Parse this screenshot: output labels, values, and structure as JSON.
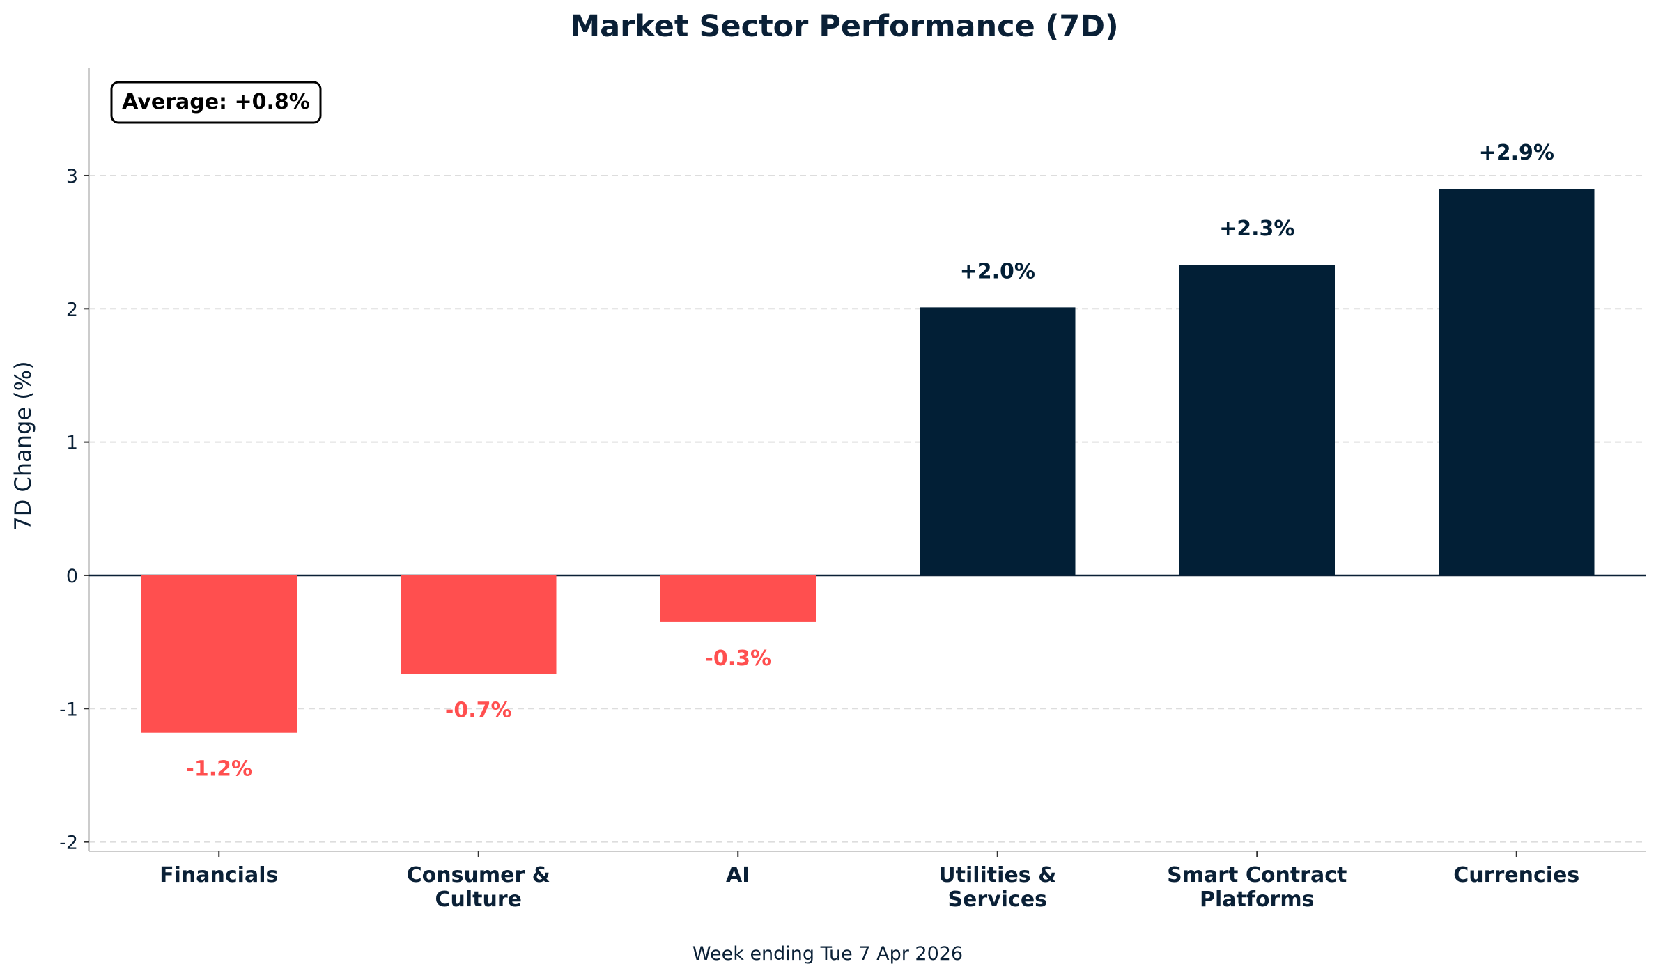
{
  "chart_data": {
    "type": "bar",
    "title": "Market Sector Performance (7D)",
    "ylabel": "7D Change (%)",
    "xlabel": "",
    "footer": "Week ending Tue 7 Apr 2026",
    "annotation": "Average: +0.8%",
    "categories": [
      [
        "Financials"
      ],
      [
        "Consumer &",
        "Culture"
      ],
      [
        "AI"
      ],
      [
        "Utilities &",
        "Services"
      ],
      [
        "Smart Contract",
        "Platforms"
      ],
      [
        "Currencies"
      ]
    ],
    "values": [
      -1.18,
      -0.74,
      -0.35,
      2.01,
      2.33,
      2.9
    ],
    "labels": [
      "-1.2%",
      "-0.7%",
      "-0.3%",
      "+2.0%",
      "+2.3%",
      "+2.9%"
    ],
    "ylim": [
      -2.07,
      3.81
    ],
    "yticks": [
      -2,
      -1,
      0,
      1,
      2,
      3
    ],
    "grid": true,
    "colors": {
      "positive": "#021f36",
      "negative": "#ff4f4f",
      "text": "#0a2036"
    }
  }
}
